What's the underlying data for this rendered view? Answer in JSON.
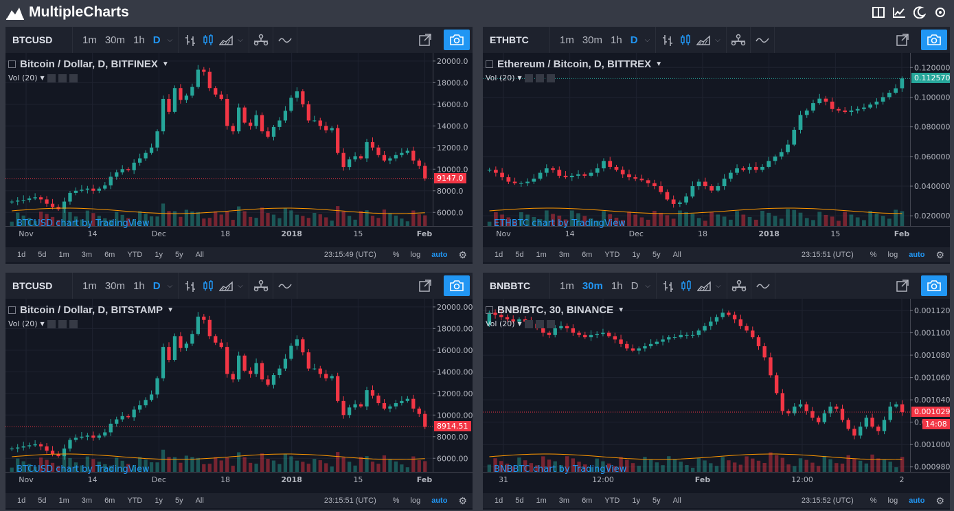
{
  "app": {
    "title": "MultipleCharts"
  },
  "timeframes": [
    "1m",
    "30m",
    "1h",
    "D"
  ],
  "ranges": [
    "1d",
    "5d",
    "1m",
    "3m",
    "6m",
    "YTD",
    "1y",
    "5y",
    "All"
  ],
  "options": {
    "percent": "%",
    "log": "log",
    "auto": "auto"
  },
  "watermark_suffix": " chart by TradingView",
  "panels": [
    {
      "symbol": "BTCUSD",
      "active_tf": "D",
      "title": "Bitcoin / Dollar, D, BITFINEX",
      "vol": "Vol (20)",
      "watermark": "BTCUSD chart by TradingView",
      "time": "23:15:49 (UTC)",
      "last_price": "9147.0",
      "last_color": "#f23645",
      "price_labels": [
        "20000.0",
        "18000.0",
        "16000.0",
        "14000.0",
        "12000.0",
        "10000.0",
        "8000.0",
        "6000.0"
      ],
      "time_labels": [
        "Nov",
        "14",
        "Dec",
        "18",
        "2018",
        "15",
        "Feb"
      ],
      "chart_data": {
        "type": "candlestick",
        "title": "Bitcoin / Dollar, D, BITFINEX",
        "ylim": [
          5000,
          20500
        ],
        "close_series": [
          7000,
          7100,
          7150,
          7300,
          7400,
          7200,
          6800,
          6500,
          6300,
          7000,
          7800,
          8000,
          8100,
          8200,
          8000,
          8200,
          8500,
          9300,
          9700,
          10000,
          9900,
          10600,
          11000,
          11500,
          12000,
          13500,
          16500,
          15300,
          17500,
          16400,
          16800,
          17600,
          19200,
          19000,
          17500,
          16900,
          16500,
          14000,
          13500,
          15700,
          14300,
          14000,
          15000,
          13500,
          13000,
          13900,
          14500,
          15400,
          16600,
          17200,
          16000,
          14500,
          14500,
          14000,
          13600,
          13800,
          11500,
          10200,
          10900,
          11200,
          11000,
          12500,
          12000,
          11300,
          10800,
          11000,
          11300,
          11500,
          11700,
          10800,
          10300,
          9147
        ],
        "last": 9147.0
      }
    },
    {
      "symbol": "ETHBTC",
      "active_tf": "D",
      "title": "Ethereum / Bitcoin, D, BITTREX",
      "vol": "Vol (20)",
      "watermark": "ETHBTC chart by TradingView",
      "time": "23:15:51 (UTC)",
      "last_price": "0.11257000",
      "last_color": "#26a69a",
      "price_labels": [
        "0.12000000",
        "0.10000000",
        "0.08000000",
        "0.06000000",
        "0.04000000",
        "0.02000000"
      ],
      "time_labels": [
        "Nov",
        "14",
        "Dec",
        "18",
        "2018",
        "15",
        "Feb"
      ],
      "chart_data": {
        "type": "candlestick",
        "title": "Ethereum / Bitcoin, D, BITTREX",
        "ylim": [
          0.015,
          0.128
        ],
        "close_series": [
          0.051,
          0.049,
          0.046,
          0.043,
          0.042,
          0.042,
          0.043,
          0.045,
          0.049,
          0.052,
          0.051,
          0.047,
          0.046,
          0.047,
          0.048,
          0.047,
          0.049,
          0.052,
          0.057,
          0.053,
          0.051,
          0.048,
          0.046,
          0.045,
          0.044,
          0.042,
          0.04,
          0.036,
          0.031,
          0.028,
          0.029,
          0.033,
          0.04,
          0.043,
          0.04,
          0.037,
          0.04,
          0.045,
          0.049,
          0.052,
          0.051,
          0.053,
          0.051,
          0.053,
          0.057,
          0.06,
          0.063,
          0.068,
          0.078,
          0.088,
          0.091,
          0.096,
          0.099,
          0.097,
          0.092,
          0.091,
          0.09,
          0.091,
          0.092,
          0.093,
          0.095,
          0.097,
          0.1,
          0.103,
          0.106,
          0.1126
        ],
        "last": 0.11257
      }
    },
    {
      "symbol": "BTCUSD",
      "active_tf": "D",
      "title": "Bitcoin / Dollar, D, BITSTAMP",
      "vol": "Vol (20)",
      "watermark": "BTCUSD chart by TradingView",
      "time": "23:15:51 (UTC)",
      "last_price": "8914.51",
      "last_color": "#f23645",
      "price_labels": [
        "20000.00",
        "18000.00",
        "16000.00",
        "14000.00",
        "12000.00",
        "10000.00",
        "8000.00",
        "6000.00"
      ],
      "time_labels": [
        "Nov",
        "14",
        "Dec",
        "18",
        "2018",
        "15",
        "Feb"
      ],
      "chart_data": {
        "type": "candlestick",
        "title": "Bitcoin / Dollar, D, BITSTAMP",
        "ylim": [
          5000,
          20500
        ],
        "close_series": [
          6900,
          7000,
          7100,
          7200,
          7300,
          7100,
          6700,
          6400,
          6200,
          6900,
          7700,
          7900,
          8000,
          8100,
          7900,
          8100,
          8400,
          9200,
          9600,
          9900,
          9800,
          10500,
          10900,
          11400,
          11900,
          13400,
          16300,
          15100,
          17300,
          16200,
          16600,
          17500,
          19100,
          18800,
          17300,
          16700,
          16300,
          13800,
          13300,
          15500,
          14100,
          13800,
          14800,
          13300,
          12800,
          13700,
          14300,
          15200,
          16400,
          17000,
          15800,
          14300,
          14300,
          13800,
          13400,
          13600,
          11300,
          10000,
          10700,
          11000,
          10800,
          12300,
          11800,
          11100,
          10600,
          10800,
          11100,
          11300,
          11500,
          10600,
          10100,
          8914.51
        ],
        "last": 8914.51
      }
    },
    {
      "symbol": "BNBBTC",
      "active_tf": "30m",
      "title": "BNB/BTC, 30, BINANCE",
      "vol": "Vol (20)",
      "watermark": "BNBBTC chart by TradingView",
      "time": "23:15:52 (UTC)",
      "last_price": "0.0010290",
      "last_color": "#f23645",
      "countdown": "14:08",
      "price_labels": [
        "0.0011200",
        "0.0011000",
        "0.0010800",
        "0.0010600",
        "0.0010400",
        "0.0010200",
        "0.0010000",
        "0.0009800"
      ],
      "time_labels": [
        "31",
        "12:00",
        "Feb",
        "12:00",
        "2"
      ],
      "chart_data": {
        "type": "candlestick",
        "title": "BNB/BTC, 30, BINANCE",
        "ylim": [
          0.000978,
          0.001128
        ],
        "close_series": [
          0.001118,
          0.001116,
          0.001114,
          0.001112,
          0.00111,
          0.001112,
          0.00111,
          0.001108,
          0.001104,
          0.0011,
          0.001098,
          0.001104,
          0.001106,
          0.001104,
          0.0011,
          0.001098,
          0.001096,
          0.001098,
          0.001099,
          0.0011,
          0.001097,
          0.001094,
          0.00109,
          0.001086,
          0.001084,
          0.001086,
          0.001088,
          0.00109,
          0.001092,
          0.001094,
          0.001096,
          0.001096,
          0.001098,
          0.001098,
          0.001098,
          0.001102,
          0.001106,
          0.00111,
          0.001114,
          0.001118,
          0.001116,
          0.001112,
          0.001106,
          0.001102,
          0.001096,
          0.001088,
          0.001078,
          0.001062,
          0.001046,
          0.00103,
          0.001028,
          0.001034,
          0.001036,
          0.00103,
          0.001024,
          0.00102,
          0.001028,
          0.001034,
          0.001032,
          0.001022,
          0.001014,
          0.001008,
          0.001016,
          0.001024,
          0.001016,
          0.001012,
          0.001022,
          0.001034,
          0.001036,
          0.001029
        ],
        "last": 0.001029
      }
    }
  ]
}
